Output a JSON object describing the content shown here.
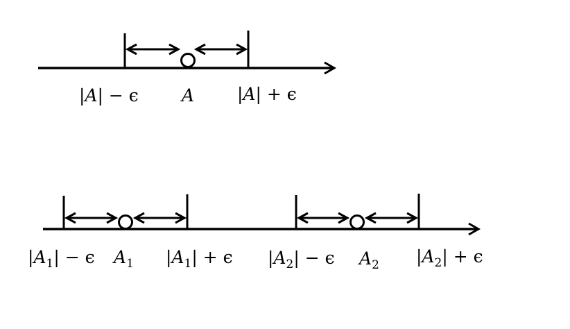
{
  "diagram_1": {
    "left_label": {
      "pre": "|",
      "var": "A",
      "post": "| − ϵ"
    },
    "center_label": {
      "var": "A"
    },
    "right_label": {
      "pre": "|",
      "var": "A",
      "post": "| + ϵ"
    }
  },
  "diagram_2": {
    "labels": {
      "a1_left": {
        "pre": "|",
        "var": "A",
        "sub": "1",
        "post": "| − ϵ"
      },
      "a1_center": {
        "var": "A",
        "sub": "1"
      },
      "a1_right": {
        "pre": "|",
        "var": "A",
        "sub": "1",
        "post": "| + ϵ"
      },
      "a2_left": {
        "pre": "|",
        "var": "A",
        "sub": "2",
        "post": "| − ϵ"
      },
      "a2_center": {
        "var": "A",
        "sub": "2"
      },
      "a2_right": {
        "pre": "|",
        "var": "A",
        "sub": "2",
        "post": "| + ϵ"
      }
    }
  },
  "colors": {
    "stroke": "#000000",
    "background": "#ffffff"
  }
}
